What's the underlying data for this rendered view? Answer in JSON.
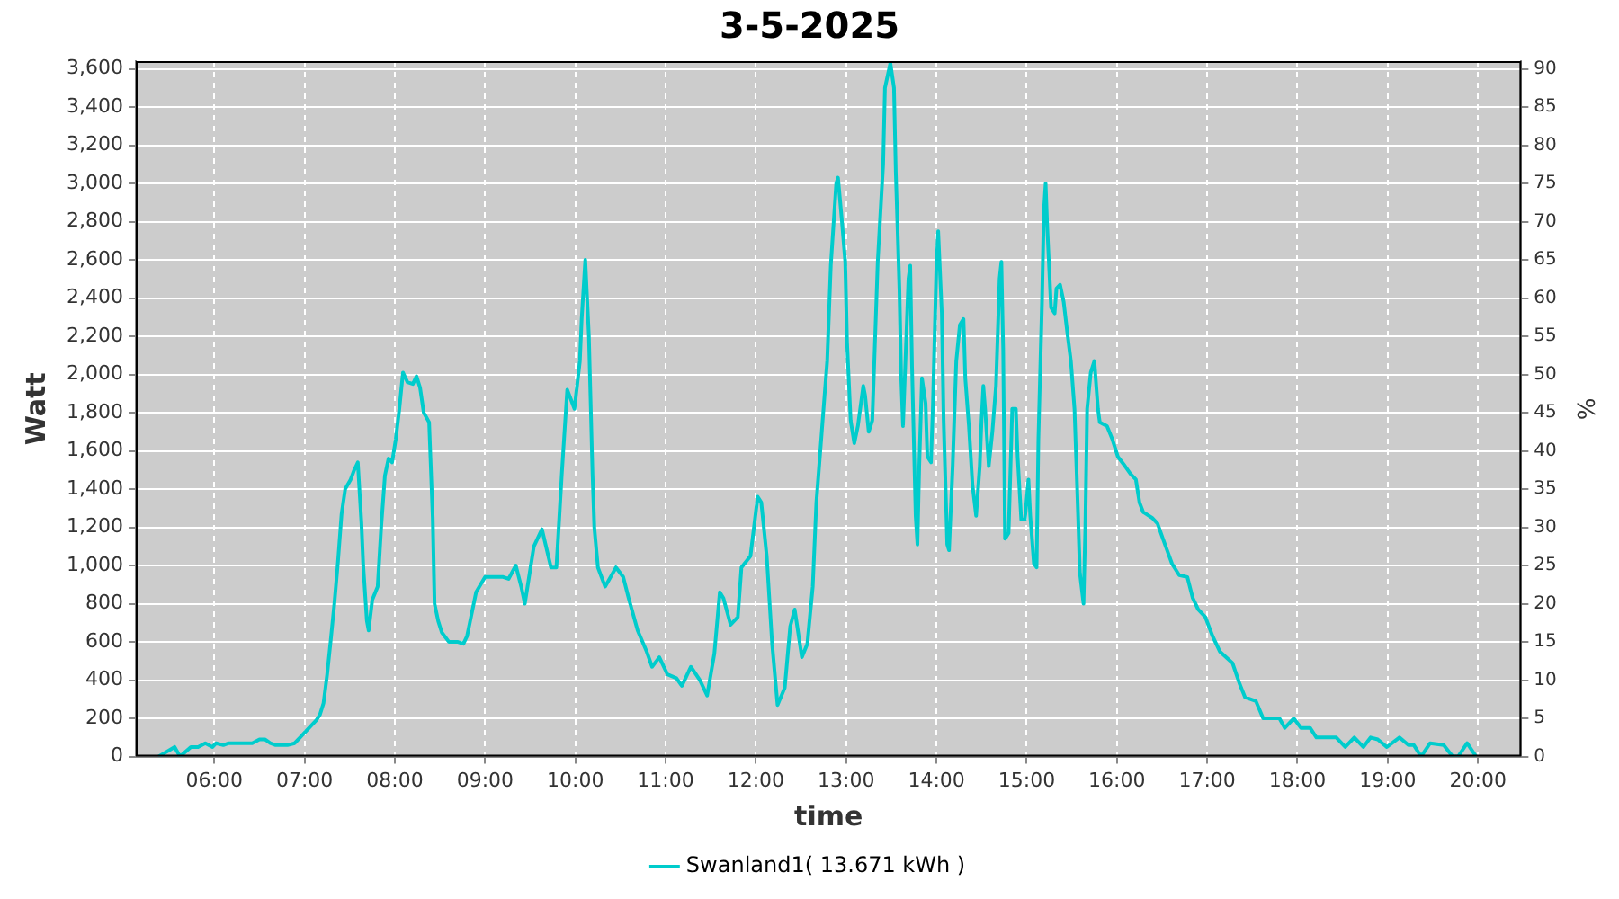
{
  "chart_data": {
    "type": "line",
    "title": "3-5-2025",
    "xlabel": "time",
    "ylabel": "Watt",
    "y2label": "%",
    "xlim": [
      5.13,
      20.48
    ],
    "xticks": [
      {
        "value": 6,
        "label": "06:00"
      },
      {
        "value": 7,
        "label": "07:00"
      },
      {
        "value": 8,
        "label": "08:00"
      },
      {
        "value": 9,
        "label": "09:00"
      },
      {
        "value": 10,
        "label": "10:00"
      },
      {
        "value": 11,
        "label": "11:00"
      },
      {
        "value": 12,
        "label": "12:00"
      },
      {
        "value": 13,
        "label": "13:00"
      },
      {
        "value": 14,
        "label": "14:00"
      },
      {
        "value": 15,
        "label": "15:00"
      },
      {
        "value": 16,
        "label": "16:00"
      },
      {
        "value": 17,
        "label": "17:00"
      },
      {
        "value": 18,
        "label": "18:00"
      },
      {
        "value": 19,
        "label": "19:00"
      },
      {
        "value": 20,
        "label": "20:00"
      }
    ],
    "ylim": [
      0,
      3640
    ],
    "yticks": [
      0,
      200,
      400,
      600,
      800,
      {
        "value": 1000,
        "label": "1,000"
      },
      {
        "value": 1200,
        "label": "1,200"
      },
      {
        "value": 1400,
        "label": "1,400"
      },
      {
        "value": 1600,
        "label": "1,600"
      },
      {
        "value": 1800,
        "label": "1,800"
      },
      {
        "value": 2000,
        "label": "2,000"
      },
      {
        "value": 2200,
        "label": "2,200"
      },
      {
        "value": 2400,
        "label": "2,400"
      },
      {
        "value": 2600,
        "label": "2,600"
      },
      {
        "value": 2800,
        "label": "2,800"
      },
      {
        "value": 3000,
        "label": "3,000"
      },
      {
        "value": 3200,
        "label": "3,200"
      },
      {
        "value": 3400,
        "label": "3,400"
      },
      {
        "value": 3600,
        "label": "3,600"
      }
    ],
    "y2lim": [
      0,
      91
    ],
    "y2ticks": [
      0,
      5,
      10,
      15,
      20,
      25,
      30,
      35,
      40,
      45,
      50,
      55,
      60,
      65,
      70,
      75,
      80,
      85,
      90
    ],
    "grid": true,
    "legend": "bottom",
    "marker": "none",
    "line_style": "solid",
    "series": [
      {
        "name": "Swanland1( 13.671 kWh )",
        "color": "#00cccc",
        "x": [
          5.38,
          5.56,
          5.62,
          5.74,
          5.82,
          5.9,
          5.98,
          6.02,
          6.1,
          6.16,
          6.3,
          6.42,
          6.5,
          6.56,
          6.62,
          6.68,
          6.81,
          6.89,
          6.95,
          7.01,
          7.05,
          7.13,
          7.17,
          7.21,
          7.25,
          7.29,
          7.33,
          7.37,
          7.41,
          7.45,
          7.51,
          7.55,
          7.59,
          7.63,
          7.65,
          7.69,
          7.71,
          7.75,
          7.81,
          7.85,
          7.89,
          7.93,
          7.97,
          8.01,
          8.05,
          8.09,
          8.14,
          8.2,
          8.24,
          8.28,
          8.32,
          8.38,
          8.42,
          8.44,
          8.48,
          8.52,
          8.6,
          8.7,
          8.76,
          8.8,
          8.9,
          9.0,
          9.2,
          9.26,
          9.34,
          9.4,
          9.44,
          9.54,
          9.63,
          9.73,
          9.79,
          9.85,
          9.91,
          9.99,
          10.05,
          10.07,
          10.11,
          10.15,
          10.17,
          10.19,
          10.21,
          10.25,
          10.33,
          10.45,
          10.53,
          10.59,
          10.69,
          10.79,
          10.85,
          10.93,
          11.02,
          11.12,
          11.18,
          11.28,
          11.38,
          11.46,
          11.54,
          11.6,
          11.64,
          11.72,
          11.8,
          11.84,
          11.94,
          12.02,
          12.06,
          12.12,
          12.18,
          12.24,
          12.32,
          12.38,
          12.43,
          12.51,
          12.57,
          12.63,
          12.67,
          12.73,
          12.79,
          12.83,
          12.89,
          12.91,
          12.95,
          12.99,
          13.01,
          13.05,
          13.09,
          13.13,
          13.19,
          13.21,
          13.25,
          13.29,
          13.31,
          13.35,
          13.41,
          13.43,
          13.49,
          13.53,
          13.55,
          13.59,
          13.61,
          13.63,
          13.65,
          13.69,
          13.71,
          13.73,
          13.77,
          13.79,
          13.81,
          13.84,
          13.88,
          13.9,
          13.94,
          13.96,
          14.0,
          14.02,
          14.06,
          14.08,
          14.12,
          14.14,
          14.18,
          14.22,
          14.26,
          14.3,
          14.32,
          14.36,
          14.4,
          14.44,
          14.48,
          14.5,
          14.52,
          14.54,
          14.58,
          14.62,
          14.66,
          14.7,
          14.72,
          14.74,
          14.76,
          14.8,
          14.84,
          14.88,
          14.9,
          14.94,
          14.98,
          15.02,
          15.04,
          15.08,
          15.11,
          15.13,
          15.17,
          15.19,
          15.21,
          15.23,
          15.27,
          15.31,
          15.33,
          15.37,
          15.41,
          15.45,
          15.49,
          15.53,
          15.57,
          15.59,
          15.63,
          15.65,
          15.67,
          15.71,
          15.75,
          15.79,
          15.81,
          15.89,
          15.95,
          16.01,
          16.09,
          16.15,
          16.21,
          16.25,
          16.29,
          16.39,
          16.45,
          16.51,
          16.61,
          16.69,
          16.78,
          16.84,
          16.9,
          16.98,
          17.06,
          17.14,
          17.28,
          17.36,
          17.42,
          17.54,
          17.62,
          17.7,
          17.8,
          17.86,
          17.96,
          18.04,
          18.14,
          18.21,
          18.33,
          18.43,
          18.53,
          18.63,
          18.73,
          18.81,
          18.89,
          18.99,
          19.13,
          19.23,
          19.29,
          19.37,
          19.47,
          19.62,
          19.72,
          19.78,
          19.88,
          19.98
        ],
        "values": [
          0,
          50,
          0,
          50,
          50,
          70,
          50,
          70,
          60,
          70,
          70,
          70,
          90,
          90,
          70,
          60,
          60,
          70,
          100,
          130,
          150,
          190,
          220,
          280,
          430,
          610,
          800,
          1020,
          1270,
          1400,
          1450,
          1500,
          1540,
          1220,
          1000,
          710,
          660,
          820,
          890,
          1210,
          1470,
          1560,
          1540,
          1660,
          1820,
          2010,
          1960,
          1950,
          1990,
          1930,
          1800,
          1750,
          1250,
          800,
          710,
          650,
          600,
          600,
          590,
          630,
          860,
          940,
          940,
          930,
          1000,
          890,
          800,
          1100,
          1190,
          990,
          990,
          1480,
          1920,
          1820,
          2070,
          2290,
          2600,
          2200,
          1840,
          1480,
          1200,
          990,
          890,
          990,
          940,
          830,
          660,
          550,
          470,
          520,
          430,
          410,
          370,
          470,
          400,
          320,
          540,
          860,
          830,
          690,
          730,
          990,
          1050,
          1360,
          1330,
          1050,
          590,
          270,
          360,
          680,
          770,
          520,
          590,
          890,
          1330,
          1700,
          2070,
          2570,
          3000,
          3030,
          2820,
          2590,
          2170,
          1760,
          1640,
          1730,
          1940,
          1890,
          1700,
          1760,
          2040,
          2590,
          3100,
          3500,
          3630,
          3500,
          3060,
          2450,
          1980,
          1730,
          1980,
          2500,
          2570,
          2040,
          1260,
          1110,
          1520,
          1980,
          1850,
          1570,
          1540,
          1820,
          2570,
          2750,
          2320,
          1760,
          1110,
          1080,
          1520,
          2070,
          2260,
          2290,
          1980,
          1730,
          1420,
          1260,
          1520,
          1760,
          1940,
          1820,
          1520,
          1700,
          1940,
          2500,
          2590,
          2130,
          1140,
          1170,
          1820,
          1820,
          1570,
          1240,
          1240,
          1450,
          1260,
          1010,
          990,
          1660,
          2380,
          2850,
          3000,
          2750,
          2350,
          2320,
          2450,
          2470,
          2380,
          2220,
          2070,
          1820,
          1260,
          960,
          800,
          1200,
          1820,
          2010,
          2070,
          1820,
          1750,
          1730,
          1660,
          1570,
          1520,
          1480,
          1450,
          1330,
          1280,
          1250,
          1220,
          1140,
          1010,
          950,
          940,
          830,
          770,
          730,
          630,
          550,
          490,
          380,
          310,
          290,
          200,
          200,
          200,
          150,
          200,
          150,
          150,
          100,
          100,
          100,
          50,
          100,
          50,
          100,
          90,
          50,
          100,
          60,
          60,
          0,
          70,
          60,
          0,
          0,
          70,
          0
        ]
      }
    ]
  }
}
